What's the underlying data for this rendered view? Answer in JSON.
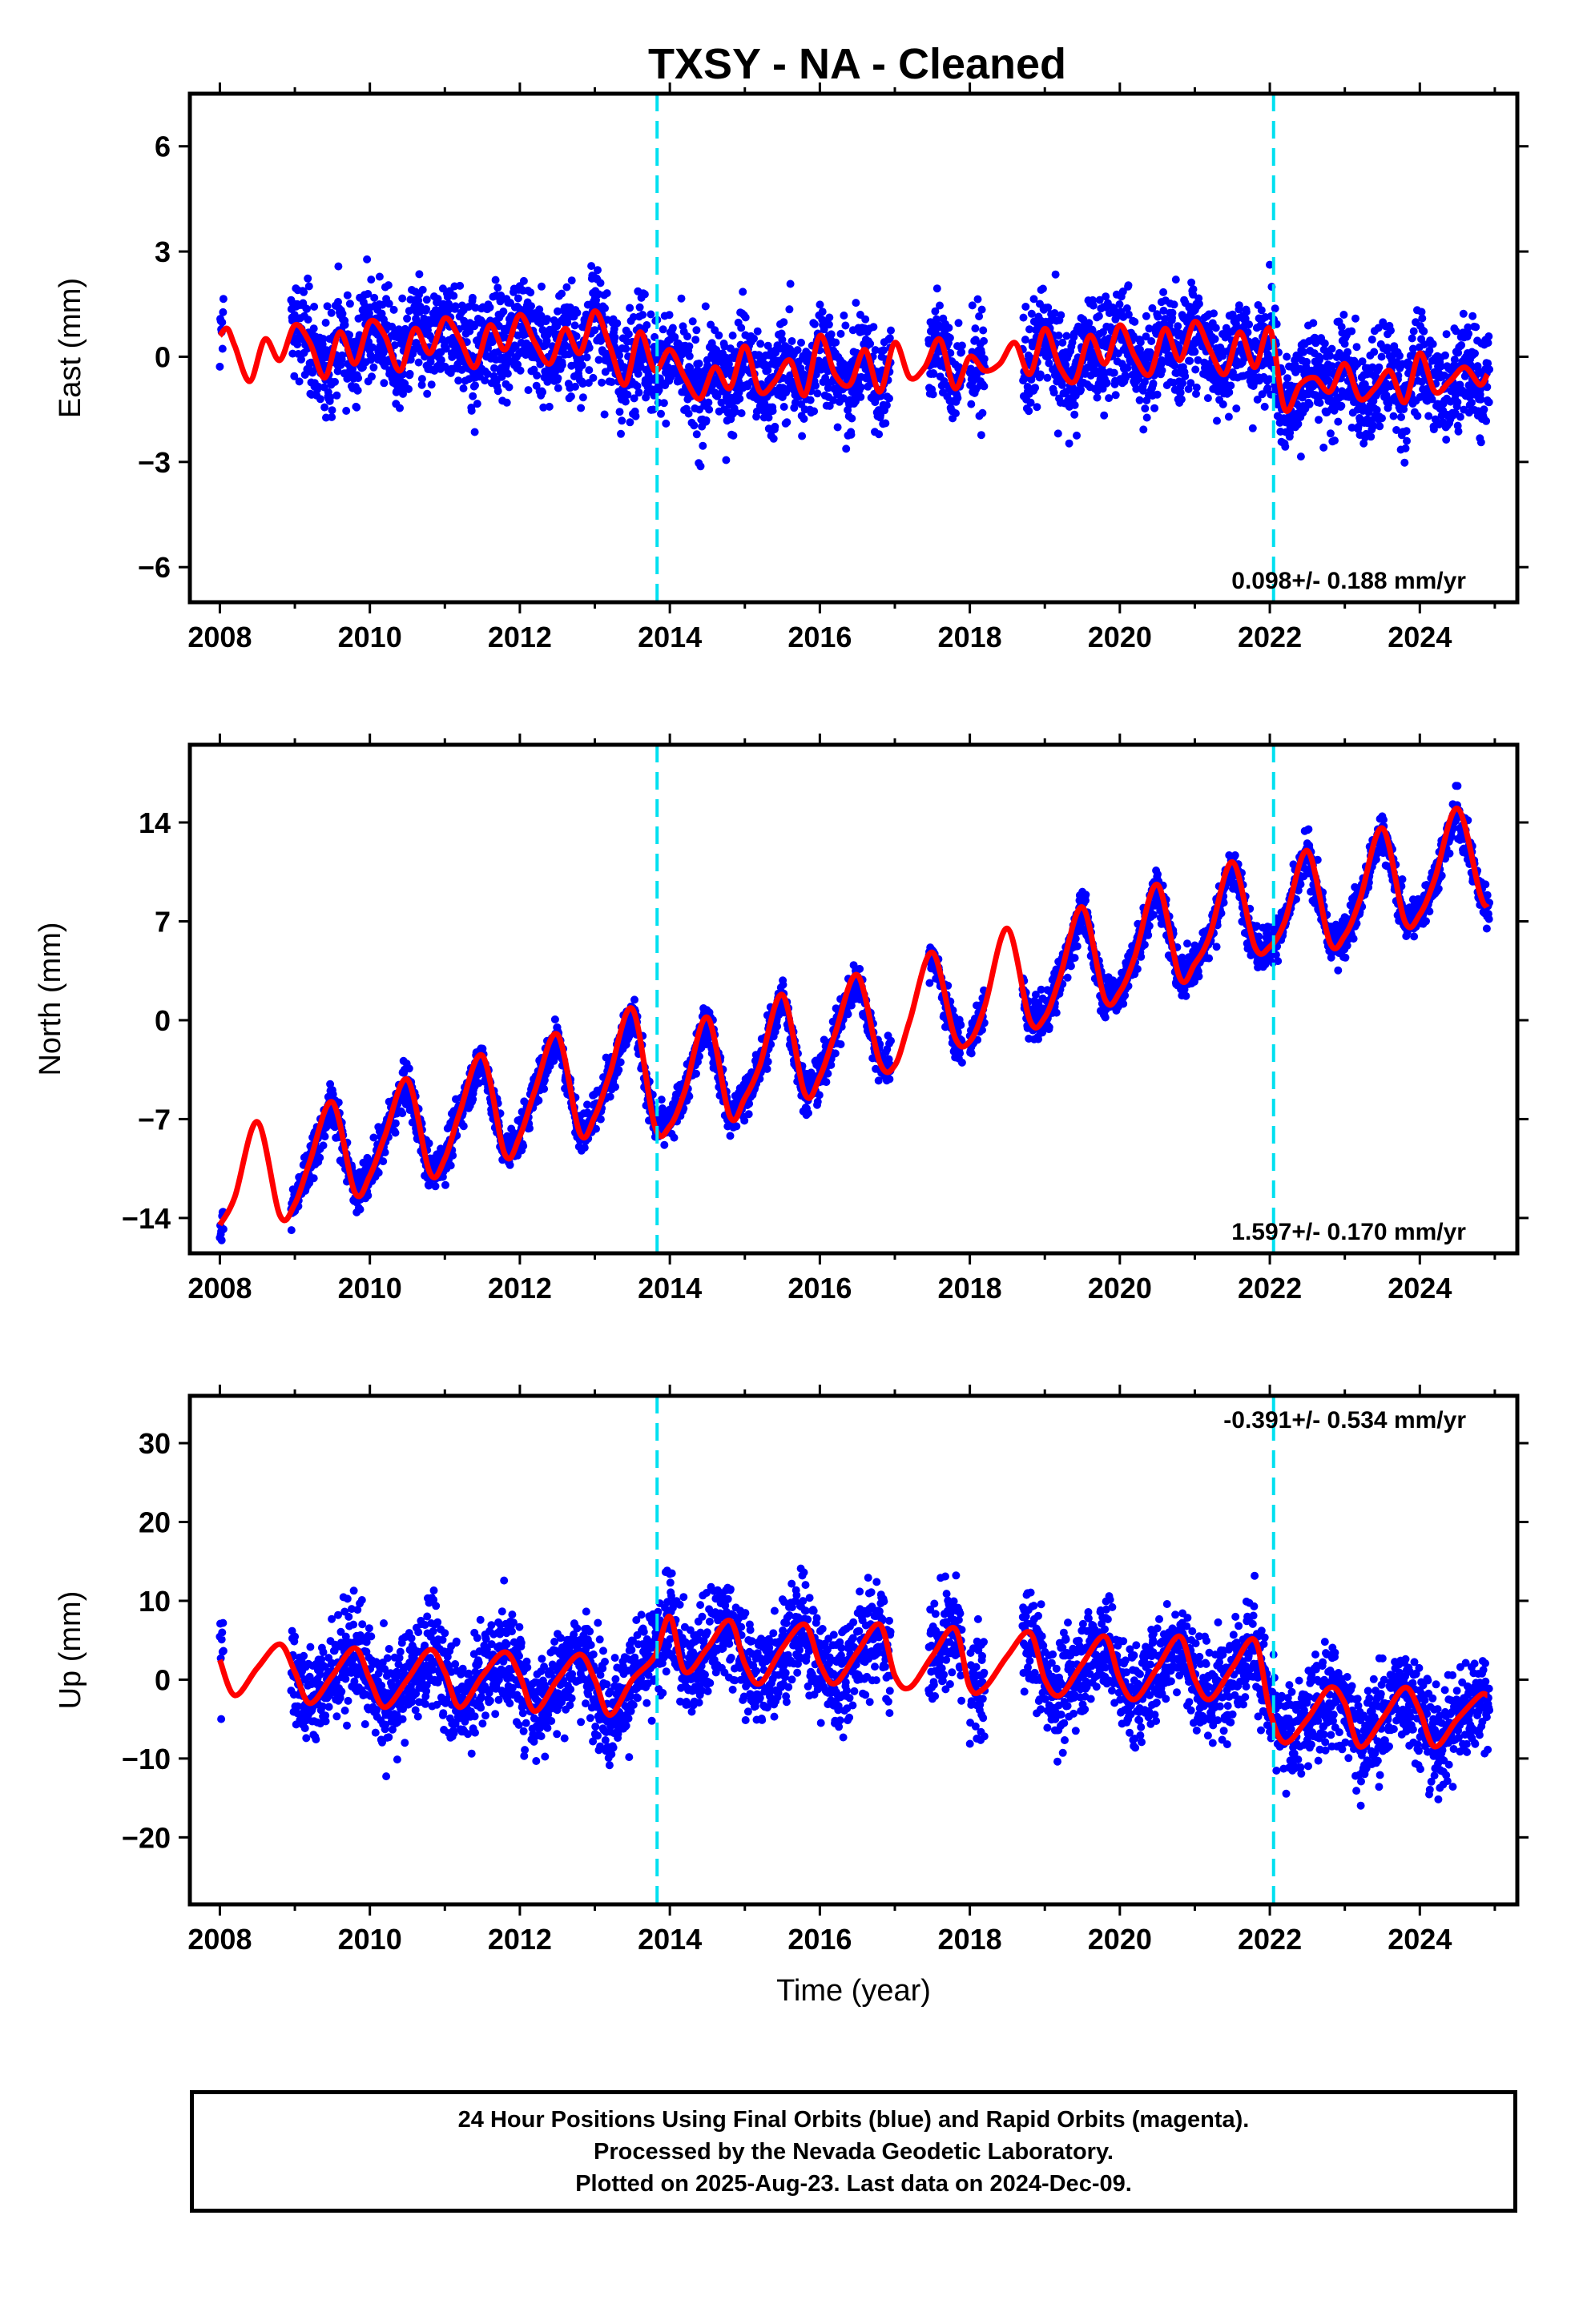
{
  "title": "TXSY  - NA - Cleaned",
  "colors": {
    "points": "#0000ff",
    "model": "#ff0000",
    "offset_line": "#00e0f0",
    "frame": "#000000"
  },
  "footer": {
    "line1": "24 Hour Positions Using Final Orbits (blue) and Rapid Orbits (magenta).",
    "line2": "Processed by the Nevada Geodetic Laboratory.",
    "line3": "Plotted on 2025-Aug-23. Last data on 2024-Dec-09."
  },
  "chart_data": [
    {
      "type": "scatter",
      "ylabel": "East (mm)",
      "xlabel": "",
      "xlim": [
        2007.6,
        2025.3
      ],
      "ylim": [
        -7.0,
        7.5
      ],
      "xticks": [
        "2008",
        "2010",
        "2012",
        "2014",
        "2016",
        "2018",
        "2020",
        "2022",
        "2024"
      ],
      "yticks": [
        "6",
        "3",
        "0",
        "−3",
        "−6"
      ],
      "ytick_values": [
        6,
        3,
        0,
        -3,
        -6
      ],
      "rate_label": "0.098+/- 0.188 mm/yr",
      "offsets": [
        2013.83,
        2022.05
      ],
      "series": [
        {
          "x": [
            2008.0,
            2008.1,
            2008.2,
            2008.4,
            2008.6,
            2008.8,
            2009.0,
            2009.2,
            2009.4,
            2009.6,
            2009.8,
            2010.0,
            2010.2,
            2010.4,
            2010.6,
            2010.8,
            2011.0,
            2011.2,
            2011.4,
            2011.6,
            2011.8,
            2012.0,
            2012.2,
            2012.4,
            2012.6,
            2012.8,
            2013.0,
            2013.2,
            2013.4,
            2013.6,
            2013.8,
            2014.0,
            2014.2,
            2014.4,
            2014.6,
            2014.8,
            2015.0,
            2015.2,
            2015.4,
            2015.6,
            2015.8,
            2016.0,
            2016.2,
            2016.4,
            2016.6,
            2016.8,
            2017.0,
            2017.2,
            2017.4,
            2017.6,
            2017.8,
            2018.0,
            2018.2,
            2018.4,
            2018.6,
            2018.8,
            2019.0,
            2019.2,
            2019.4,
            2019.6,
            2019.8,
            2020.0,
            2020.2,
            2020.4,
            2020.6,
            2020.8,
            2021.0,
            2021.2,
            2021.4,
            2021.6,
            2021.8,
            2022.0,
            2022.2,
            2022.4,
            2022.6,
            2022.8,
            2023.0,
            2023.2,
            2023.4,
            2023.6,
            2023.8,
            2024.0,
            2024.2,
            2024.4,
            2024.6,
            2024.8,
            2024.9
          ],
          "y": [
            0.6,
            0.8,
            0.3,
            -0.7,
            0.5,
            -0.1,
            0.9,
            0.4,
            -0.6,
            0.7,
            -0.2,
            1.0,
            0.6,
            -0.4,
            0.8,
            0.1,
            1.1,
            0.5,
            -0.3,
            0.9,
            0.2,
            1.2,
            0.4,
            -0.2,
            0.8,
            0.1,
            1.3,
            0.3,
            -0.8,
            0.7,
            -0.4,
            0.2,
            -0.6,
            -1.2,
            -0.3,
            -0.9,
            0.3,
            -1.0,
            -0.7,
            -0.1,
            -1.1,
            0.6,
            -0.5,
            -0.8,
            0.2,
            -1.0,
            0.4,
            -0.6,
            -0.3,
            0.5,
            -0.9,
            0.0,
            -0.4,
            -0.2,
            0.4,
            -0.5,
            0.8,
            -0.3,
            -0.7,
            0.6,
            -0.2,
            0.9,
            0.0,
            -0.5,
            0.8,
            -0.1,
            1.0,
            0.2,
            -0.5,
            0.7,
            -0.3,
            0.8,
            -1.5,
            -0.8,
            -0.6,
            -1.0,
            -0.2,
            -1.2,
            -0.9,
            -0.4,
            -1.3,
            0.1,
            -1.0,
            -0.7,
            -0.3,
            -0.8,
            -0.5
          ]
        }
      ]
    },
    {
      "type": "scatter",
      "ylabel": "North (mm)",
      "xlabel": "",
      "xlim": [
        2007.6,
        2025.3
      ],
      "ylim": [
        -16.5,
        19.5
      ],
      "xticks": [
        "2008",
        "2010",
        "2012",
        "2014",
        "2016",
        "2018",
        "2020",
        "2022",
        "2024"
      ],
      "yticks": [
        "14",
        "7",
        "0",
        "−7",
        "−14"
      ],
      "ytick_values": [
        14,
        7,
        0,
        -7,
        -14
      ],
      "rate_label": "1.597+/- 0.170 mm/yr",
      "offsets": [
        2013.83,
        2022.05
      ],
      "series": [
        {
          "x": [
            2008.0,
            2008.2,
            2008.5,
            2008.8,
            2009.0,
            2009.2,
            2009.5,
            2009.8,
            2010.0,
            2010.2,
            2010.5,
            2010.8,
            2011.0,
            2011.2,
            2011.5,
            2011.8,
            2012.0,
            2012.2,
            2012.5,
            2012.8,
            2013.0,
            2013.2,
            2013.5,
            2013.8,
            2014.0,
            2014.2,
            2014.5,
            2014.8,
            2015.0,
            2015.2,
            2015.5,
            2015.8,
            2016.0,
            2016.2,
            2016.5,
            2016.8,
            2017.0,
            2017.2,
            2017.5,
            2017.8,
            2018.0,
            2018.2,
            2018.5,
            2018.8,
            2019.0,
            2019.2,
            2019.5,
            2019.8,
            2020.0,
            2020.2,
            2020.5,
            2020.8,
            2021.0,
            2021.2,
            2021.5,
            2021.8,
            2022.0,
            2022.2,
            2022.5,
            2022.8,
            2023.0,
            2023.2,
            2023.5,
            2023.8,
            2024.0,
            2024.2,
            2024.5,
            2024.8,
            2024.9
          ],
          "y": [
            -14.5,
            -12.5,
            -7.2,
            -13.8,
            -13.0,
            -10.0,
            -5.8,
            -12.2,
            -11.0,
            -8.2,
            -4.2,
            -10.8,
            -9.8,
            -6.5,
            -2.5,
            -9.5,
            -8.2,
            -5.0,
            -1.0,
            -8.0,
            -6.8,
            -3.8,
            0.8,
            -7.5,
            -7.5,
            -5.0,
            0.2,
            -6.8,
            -5.5,
            -3.2,
            1.8,
            -5.2,
            -4.0,
            -1.0,
            3.2,
            -3.0,
            -3.2,
            0.0,
            4.8,
            -1.2,
            -1.5,
            1.0,
            6.5,
            0.0,
            0.2,
            3.0,
            8.0,
            1.5,
            2.0,
            4.5,
            9.6,
            3.0,
            4.0,
            6.0,
            11.2,
            5.2,
            5.2,
            7.0,
            12.0,
            5.5,
            6.0,
            8.5,
            13.6,
            7.0,
            7.5,
            10.0,
            15.0,
            9.0,
            8.0
          ]
        }
      ]
    },
    {
      "type": "scatter",
      "ylabel": "Up (mm)",
      "xlabel": "Time (year)",
      "xlim": [
        2007.6,
        2025.3
      ],
      "ylim": [
        -28.5,
        36.0
      ],
      "xticks": [
        "2008",
        "2010",
        "2012",
        "2014",
        "2016",
        "2018",
        "2020",
        "2022",
        "2024"
      ],
      "yticks": [
        "30",
        "20",
        "10",
        "0",
        "−10",
        "−20"
      ],
      "ytick_values": [
        30,
        20,
        10,
        0,
        -10,
        -20
      ],
      "rate_label": "-0.391+/- 0.534 mm/yr",
      "offsets": [
        2013.83,
        2022.05
      ],
      "series": [
        {
          "x": [
            2008.0,
            2008.2,
            2008.5,
            2008.8,
            2009.0,
            2009.2,
            2009.5,
            2009.8,
            2010.0,
            2010.2,
            2010.5,
            2010.8,
            2011.0,
            2011.2,
            2011.5,
            2011.8,
            2012.0,
            2012.2,
            2012.5,
            2012.8,
            2013.0,
            2013.2,
            2013.5,
            2013.8,
            2014.0,
            2014.2,
            2014.5,
            2014.8,
            2015.0,
            2015.2,
            2015.5,
            2015.8,
            2016.0,
            2016.2,
            2016.5,
            2016.8,
            2017.0,
            2017.2,
            2017.5,
            2017.8,
            2018.0,
            2018.2,
            2018.5,
            2018.8,
            2019.0,
            2019.2,
            2019.5,
            2019.8,
            2020.0,
            2020.2,
            2020.5,
            2020.8,
            2021.0,
            2021.2,
            2021.5,
            2021.8,
            2022.0,
            2022.2,
            2022.5,
            2022.8,
            2023.0,
            2023.2,
            2023.5,
            2023.8,
            2024.0,
            2024.2,
            2024.5,
            2024.8,
            2024.9
          ],
          "y": [
            2.5,
            -2.0,
            1.5,
            4.5,
            1.0,
            -3.0,
            0.5,
            4.0,
            0.0,
            -3.5,
            0.0,
            3.8,
            1.0,
            -3.5,
            0.5,
            3.5,
            0.5,
            -4.0,
            0.0,
            3.2,
            0.0,
            -4.5,
            0.0,
            3.0,
            8.0,
            1.0,
            4.0,
            7.5,
            2.0,
            -0.5,
            4.0,
            7.0,
            2.0,
            -0.5,
            3.5,
            7.0,
            0.5,
            -1.0,
            3.0,
            6.5,
            -1.0,
            -1.0,
            3.0,
            6.0,
            0.0,
            -2.0,
            2.0,
            5.5,
            0.0,
            -2.5,
            1.5,
            5.5,
            0.0,
            -2.5,
            1.5,
            5.0,
            -4.0,
            -8.0,
            -5.0,
            -1.0,
            -3.0,
            -8.5,
            -5.0,
            -1.0,
            -4.0,
            -8.5,
            -5.0,
            -2.0,
            -2.0
          ]
        }
      ]
    }
  ]
}
